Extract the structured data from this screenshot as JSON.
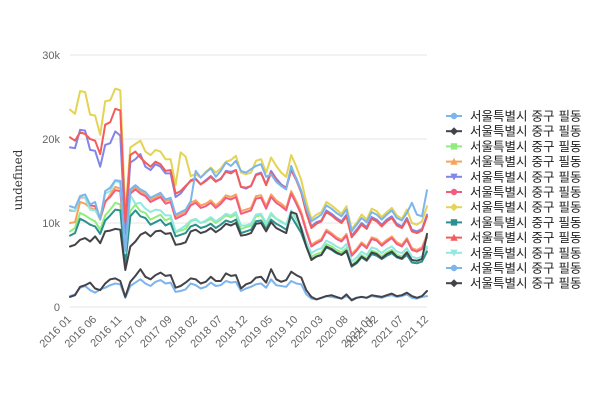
{
  "chart_data": {
    "type": "line",
    "title": "",
    "ylabel": "undefined",
    "xlabel": "",
    "ylim": [
      0,
      30000
    ],
    "yticks": [
      {
        "value": 0,
        "label": "0"
      },
      {
        "value": 10000,
        "label": "10k"
      },
      {
        "value": 20000,
        "label": "20k"
      },
      {
        "value": 30000,
        "label": "30k"
      }
    ],
    "x_start": "2016-01",
    "n_points": 72,
    "xticks": [
      {
        "index": 0,
        "label": "2016 01"
      },
      {
        "index": 5,
        "label": "2016 06"
      },
      {
        "index": 10,
        "label": "2016 11"
      },
      {
        "index": 15,
        "label": "2017 04"
      },
      {
        "index": 20,
        "label": "2017 09"
      },
      {
        "index": 25,
        "label": "2018 02"
      },
      {
        "index": 30,
        "label": "2018 07"
      },
      {
        "index": 35,
        "label": "2018 12"
      },
      {
        "index": 40,
        "label": "2019 05"
      },
      {
        "index": 45,
        "label": "2019 10"
      },
      {
        "index": 50,
        "label": "2020 03"
      },
      {
        "index": 55,
        "label": "2020 08"
      },
      {
        "index": 60,
        "label": "2021 01"
      },
      {
        "index": 61,
        "label": "2021 02"
      },
      {
        "index": 66,
        "label": "2021 07"
      },
      {
        "index": 71,
        "label": "2021 12"
      }
    ],
    "series": [
      {
        "name": "서울특별시 중구 필동",
        "color": "#7cb5ec",
        "marker": "circle",
        "values": [
          1300,
          1500,
          2300,
          2500,
          2000,
          1700,
          2100,
          2300,
          2600,
          2800,
          2700,
          1100,
          2500,
          2900,
          3300,
          2800,
          2500,
          3000,
          3200,
          2800,
          2900,
          1800,
          1900,
          2100,
          2800,
          2600,
          2200,
          2400,
          2900,
          2500,
          2600,
          3100,
          2900,
          3000,
          1900,
          2200,
          2400,
          2700,
          2800,
          2300,
          3300,
          2600,
          2500,
          2400,
          3100,
          2800,
          2700,
          1500,
          1000,
          900,
          1100,
          1300,
          1200,
          1100,
          1000,
          1300,
          900,
          1100,
          1200,
          1100,
          1300,
          1200,
          1100,
          1300,
          1400,
          1200,
          1300,
          1500,
          1100,
          1000,
          1200,
          1300
        ]
      },
      {
        "name": "서울특별시 중구 필동",
        "color": "#434348",
        "marker": "diamond",
        "values": [
          1200,
          1400,
          2400,
          2600,
          2900,
          2200,
          2000,
          2800,
          3300,
          3400,
          3100,
          1200,
          3000,
          3700,
          4500,
          3600,
          3300,
          3800,
          4100,
          3700,
          3800,
          2300,
          2500,
          2900,
          3400,
          3300,
          2800,
          3000,
          3600,
          3100,
          3100,
          4000,
          3700,
          3800,
          2200,
          2700,
          2900,
          3500,
          3600,
          2900,
          4500,
          3300,
          3000,
          3200,
          4200,
          3800,
          3500,
          2000,
          1200,
          900,
          1100,
          1300,
          1400,
          1200,
          1000,
          1500,
          800,
          1100,
          1200,
          1100,
          1400,
          1300,
          1200,
          1400,
          1600,
          1300,
          1400,
          1700,
          1300,
          1100,
          1300,
          1900
        ]
      },
      {
        "name": "서울특별시 중구 필동",
        "color": "#90ed7d",
        "marker": "square",
        "values": [
          9000,
          9400,
          11200,
          10900,
          10500,
          10200,
          9200,
          10900,
          11600,
          12400,
          12200,
          5500,
          11400,
          12200,
          11400,
          11200,
          10400,
          10700,
          11000,
          10300,
          10600,
          8900,
          9100,
          9300,
          10200,
          10400,
          10000,
          10200,
          10500,
          10000,
          10400,
          10900,
          10700,
          11000,
          9300,
          9500,
          9700,
          10800,
          10900,
          9800,
          11000,
          10500,
          10200,
          9800,
          11400,
          10400,
          9300,
          7600,
          6000,
          6300,
          6500,
          7500,
          7200,
          6800,
          6500,
          7000,
          5000,
          5500,
          6200,
          5800,
          6700,
          6500,
          6000,
          6500,
          6800,
          6200,
          6000,
          6600,
          5600,
          5500,
          5700,
          7000
        ]
      },
      {
        "name": "서울특별시 중구 필동",
        "color": "#f7a35c",
        "marker": "triangle",
        "values": [
          10000,
          10100,
          12500,
          12300,
          11800,
          11600,
          10400,
          12400,
          13400,
          14300,
          14100,
          6600,
          13800,
          14300,
          13800,
          13400,
          12800,
          13000,
          13400,
          12600,
          12800,
          10800,
          11100,
          11400,
          12400,
          12700,
          12100,
          12300,
          12700,
          12100,
          12600,
          13300,
          13100,
          13400,
          11400,
          11600,
          11800,
          13200,
          13300,
          12000,
          13400,
          12700,
          12300,
          11800,
          13800,
          12600,
          11300,
          9200,
          7400,
          7800,
          8100,
          9200,
          8800,
          8300,
          8000,
          8700,
          6300,
          6900,
          7700,
          7200,
          8300,
          8100,
          7500,
          8000,
          8400,
          7700,
          7400,
          8200,
          7000,
          6800,
          7100,
          8600
        ]
      },
      {
        "name": "서울특별시 중구 필동",
        "color": "#8085e9",
        "marker": "triangle-down",
        "values": [
          19000,
          18900,
          21100,
          21000,
          18700,
          18600,
          16700,
          19300,
          19500,
          20900,
          20400,
          8600,
          17200,
          17600,
          18200,
          16700,
          16300,
          17000,
          16700,
          15900,
          15900,
          13100,
          13500,
          14300,
          15100,
          15300,
          14600,
          15100,
          15600,
          15000,
          15200,
          16200,
          16100,
          16300,
          14300,
          14100,
          14400,
          15800,
          16000,
          14600,
          16200,
          15300,
          14600,
          14200,
          16500,
          15300,
          13800,
          11400,
          9600,
          10100,
          10300,
          11500,
          11100,
          10600,
          10200,
          11000,
          8500,
          9200,
          10000,
          9500,
          10700,
          10400,
          9800,
          10400,
          10800,
          9900,
          9600,
          10600,
          9200,
          9000,
          9300,
          11000
        ]
      },
      {
        "name": "서울특별시 중구 필동",
        "color": "#f15c80",
        "marker": "circle",
        "values": [
          11500,
          11400,
          13100,
          13000,
          12100,
          12000,
          10600,
          12600,
          13100,
          13900,
          13800,
          6600,
          13500,
          14000,
          13500,
          13200,
          12500,
          12800,
          13100,
          12300,
          12500,
          10500,
          10800,
          11100,
          12100,
          12400,
          11800,
          12000,
          12400,
          11800,
          12300,
          13000,
          12800,
          13100,
          11100,
          11300,
          11500,
          12900,
          13000,
          11700,
          13100,
          12400,
          12000,
          11500,
          13500,
          12300,
          11000,
          9000,
          7200,
          7600,
          7900,
          9000,
          8600,
          8100,
          7800,
          8500,
          6100,
          6700,
          7500,
          7000,
          8100,
          7900,
          7300,
          7800,
          8200,
          7500,
          7200,
          8000,
          6800,
          6600,
          6900,
          8300
        ]
      },
      {
        "name": "서울특별시 중구 필동",
        "color": "#e4d354",
        "marker": "diamond",
        "values": [
          23500,
          23000,
          25700,
          25600,
          22900,
          22800,
          20500,
          24500,
          24600,
          26000,
          25800,
          10900,
          19000,
          19400,
          19800,
          18500,
          18100,
          18700,
          18500,
          17600,
          17600,
          14500,
          18400,
          17900,
          15600,
          15800,
          15400,
          16100,
          16600,
          16000,
          16500,
          17300,
          17500,
          18000,
          16000,
          15800,
          16000,
          17400,
          17600,
          16000,
          17800,
          16800,
          16000,
          15500,
          18100,
          16700,
          15100,
          12500,
          10500,
          11000,
          11300,
          12500,
          12100,
          11600,
          11100,
          12000,
          9300,
          10000,
          11000,
          10400,
          11700,
          11400,
          10700,
          11300,
          11800,
          10900,
          10500,
          11600,
          10000,
          9800,
          10200,
          12000
        ]
      },
      {
        "name": "서울특별시 중구 필동",
        "color": "#2b908f",
        "marker": "square",
        "values": [
          8500,
          8800,
          10500,
          10200,
          9800,
          9600,
          8700,
          10300,
          10900,
          11600,
          11500,
          5200,
          10800,
          11500,
          10800,
          10600,
          9800,
          10100,
          10400,
          9700,
          10000,
          8400,
          8600,
          8800,
          9600,
          9800,
          9400,
          9600,
          9900,
          9400,
          9800,
          10300,
          10100,
          10400,
          8800,
          9000,
          9200,
          10200,
          10300,
          9300,
          10400,
          9900,
          9600,
          9200,
          10800,
          9800,
          8800,
          7200,
          5700,
          6000,
          6200,
          7100,
          6800,
          6400,
          6200,
          6600,
          4800,
          5200,
          5900,
          5500,
          6300,
          6100,
          5700,
          6100,
          6400,
          5900,
          5700,
          6200,
          5300,
          5200,
          5400,
          6600
        ]
      },
      {
        "name": "서울특별시 중구 필동",
        "color": "#f45b5b",
        "marker": "triangle",
        "values": [
          20200,
          19800,
          20800,
          20600,
          20000,
          19800,
          18200,
          21700,
          22000,
          23600,
          23400,
          10100,
          18100,
          18500,
          17800,
          17200,
          16700,
          17300,
          17000,
          16200,
          16300,
          13500,
          13800,
          14400,
          15000,
          15200,
          14600,
          15000,
          15500,
          14900,
          15300,
          16100,
          15900,
          16300,
          14300,
          14200,
          14400,
          15700,
          15900,
          14500,
          16000,
          15100,
          14500,
          14100,
          16300,
          15100,
          13600,
          11200,
          9400,
          9900,
          10200,
          11300,
          10900,
          10400,
          10000,
          10800,
          8300,
          9000,
          9800,
          9300,
          10500,
          10200,
          9600,
          10200,
          10600,
          9700,
          9400,
          10400,
          9000,
          8800,
          9100,
          10800
        ]
      },
      {
        "name": "서울특별시 중구 필동",
        "color": "#91e8e1",
        "marker": "triangle-down",
        "values": [
          11600,
          11400,
          13200,
          13000,
          11600,
          11500,
          10600,
          13500,
          13800,
          15000,
          14800,
          6400,
          13300,
          12300,
          12400,
          11700,
          11300,
          11600,
          11500,
          10900,
          10900,
          9000,
          9300,
          9700,
          10300,
          10500,
          10000,
          10300,
          10700,
          10200,
          10600,
          11100,
          10900,
          11300,
          9700,
          9700,
          9900,
          11000,
          11100,
          10000,
          11200,
          10500,
          10100,
          9800,
          11500,
          10500,
          9500,
          7800,
          6400,
          6800,
          7000,
          7900,
          7600,
          7200,
          6900,
          7500,
          5400,
          5900,
          6600,
          6200,
          7100,
          6900,
          6400,
          6900,
          7200,
          6600,
          6400,
          7000,
          6000,
          5800,
          6000,
          7200
        ]
      },
      {
        "name": "서울특별시 중구 필동",
        "color": "#7cb5ec",
        "marker": "circle",
        "values": [
          12000,
          11800,
          13200,
          13400,
          12200,
          12500,
          10400,
          13800,
          14200,
          15100,
          15000,
          6700,
          14000,
          14500,
          14000,
          13700,
          13000,
          13300,
          13600,
          12800,
          13000,
          11000,
          11300,
          11600,
          12600,
          16200,
          15400,
          16000,
          16500,
          15500,
          16200,
          17200,
          16800,
          17400,
          16200,
          16000,
          16400,
          16800,
          17000,
          15500,
          15800,
          14900,
          14400,
          14000,
          16800,
          15200,
          13800,
          11800,
          10200,
          10600,
          11000,
          12100,
          11700,
          11200,
          10800,
          11600,
          9000,
          9800,
          10600,
          10100,
          11300,
          11000,
          10400,
          11000,
          11500,
          10600,
          10300,
          11200,
          12400,
          11000,
          10800,
          13900
        ]
      },
      {
        "name": "서울특별시 중구 필동",
        "color": "#434348",
        "marker": "diamond",
        "values": [
          7200,
          7400,
          8000,
          8200,
          7800,
          8400,
          7600,
          9000,
          9100,
          9300,
          9200,
          4400,
          7200,
          7800,
          8600,
          8900,
          8400,
          9000,
          9100,
          8700,
          8800,
          7400,
          7500,
          7700,
          9000,
          9200,
          8800,
          9000,
          9400,
          8900,
          9300,
          9900,
          9700,
          10000,
          8500,
          8600,
          8800,
          9900,
          10000,
          9000,
          10100,
          9400,
          9100,
          8800,
          11300,
          11100,
          9300,
          7200,
          5600,
          6000,
          6200,
          7200,
          6900,
          6500,
          6200,
          6700,
          4900,
          5300,
          6000,
          5600,
          6500,
          6300,
          5800,
          6300,
          6600,
          6000,
          5800,
          6500,
          5600,
          5500,
          5700,
          8700
        ]
      }
    ]
  }
}
